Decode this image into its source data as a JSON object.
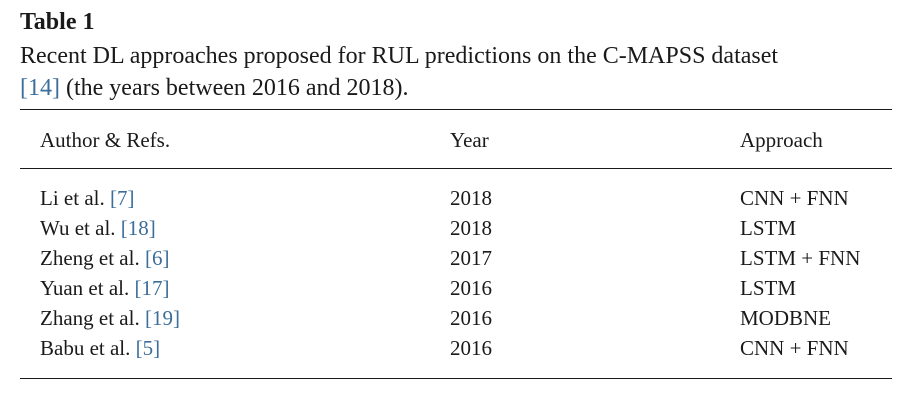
{
  "table": {
    "label": "Table 1",
    "caption": {
      "line1": "Recent DL approaches proposed for RUL predictions on the C-MAPSS dataset",
      "line2_ref": "[14]",
      "line2_rest": " (the years between 2016 and 2018)."
    },
    "headers": {
      "author": "Author & Refs.",
      "year": "Year",
      "approach": "Approach"
    },
    "rows": [
      {
        "author": "Li et al.",
        "ref": "[7]",
        "year": "2018",
        "approach": "CNN + FNN"
      },
      {
        "author": "Wu et al.",
        "ref": "[18]",
        "year": "2018",
        "approach": "LSTM"
      },
      {
        "author": "Zheng et al.",
        "ref": "[6]",
        "year": "2017",
        "approach": "LSTM + FNN"
      },
      {
        "author": "Yuan et al.",
        "ref": "[17]",
        "year": "2016",
        "approach": "LSTM"
      },
      {
        "author": "Zhang et al.",
        "ref": "[19]",
        "year": "2016",
        "approach": "MODBNE"
      },
      {
        "author": "Babu et al.",
        "ref": "[5]",
        "year": "2016",
        "approach": "CNN + FNN"
      }
    ],
    "colors": {
      "text": "#1a1a1a",
      "reference_link": "#3c6e9b"
    }
  }
}
